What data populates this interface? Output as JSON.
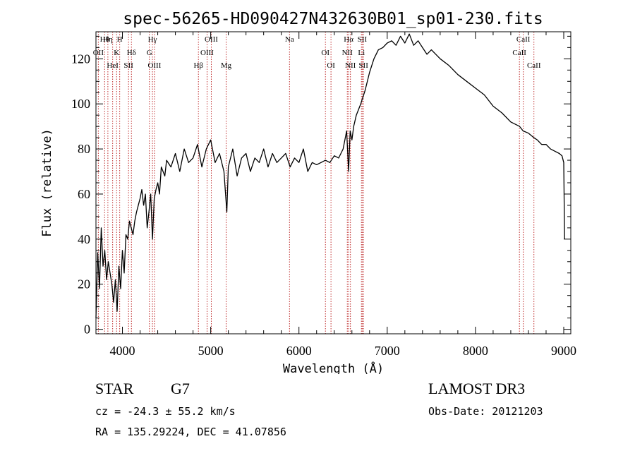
{
  "chart_data": {
    "type": "line",
    "title": "spec-56265-HD090427N432630B01_sp01-230.fits",
    "xlabel": "Wavelength (Å)",
    "ylabel": "Flux (relative)",
    "xlim": [
      3700,
      9080
    ],
    "ylim": [
      -2,
      132
    ],
    "x_ticks": [
      4000,
      5000,
      6000,
      7000,
      8000,
      9000
    ],
    "y_ticks": [
      0,
      20,
      40,
      60,
      80,
      100,
      120
    ],
    "grid": false,
    "series": [
      {
        "name": "flux",
        "x": [
          3700,
          3720,
          3740,
          3760,
          3780,
          3800,
          3820,
          3840,
          3860,
          3880,
          3900,
          3920,
          3940,
          3960,
          3980,
          4000,
          4020,
          4040,
          4060,
          4080,
          4100,
          4120,
          4140,
          4160,
          4180,
          4200,
          4220,
          4240,
          4260,
          4280,
          4300,
          4320,
          4340,
          4360,
          4380,
          4400,
          4420,
          4440,
          4460,
          4480,
          4500,
          4550,
          4600,
          4650,
          4700,
          4750,
          4800,
          4850,
          4900,
          4950,
          5000,
          5050,
          5100,
          5150,
          5183,
          5200,
          5250,
          5300,
          5350,
          5400,
          5450,
          5500,
          5550,
          5600,
          5650,
          5700,
          5750,
          5800,
          5850,
          5900,
          5950,
          6000,
          6050,
          6100,
          6150,
          6200,
          6250,
          6300,
          6350,
          6400,
          6450,
          6500,
          6540,
          6563,
          6580,
          6600,
          6620,
          6650,
          6700,
          6750,
          6800,
          6850,
          6900,
          6950,
          7000,
          7050,
          7100,
          7150,
          7200,
          7250,
          7300,
          7350,
          7400,
          7450,
          7500,
          7600,
          7700,
          7800,
          7900,
          8000,
          8100,
          8200,
          8300,
          8400,
          8500,
          8540,
          8600,
          8662,
          8700,
          8750,
          8800,
          8850,
          8900,
          8950,
          8980,
          9000,
          9010
        ],
        "values": [
          5,
          34,
          18,
          45,
          28,
          35,
          22,
          30,
          25,
          20,
          12,
          22,
          8,
          28,
          18,
          35,
          25,
          42,
          40,
          48,
          45,
          42,
          48,
          52,
          55,
          58,
          62,
          55,
          60,
          45,
          52,
          60,
          40,
          58,
          62,
          65,
          60,
          72,
          70,
          68,
          75,
          72,
          78,
          70,
          80,
          74,
          76,
          82,
          72,
          80,
          84,
          74,
          78,
          70,
          52,
          72,
          80,
          68,
          76,
          78,
          70,
          76,
          74,
          80,
          72,
          78,
          74,
          76,
          78,
          72,
          76,
          74,
          80,
          70,
          74,
          73,
          74,
          75,
          74,
          77,
          76,
          80,
          88,
          70,
          88,
          84,
          90,
          95,
          100,
          106,
          114,
          120,
          124,
          125,
          127,
          128,
          126,
          130,
          127,
          131,
          126,
          128,
          125,
          122,
          124,
          120,
          117,
          113,
          110,
          107,
          104,
          99,
          96,
          92,
          90,
          88,
          87,
          85,
          84,
          82,
          82,
          80,
          79,
          78,
          77,
          74,
          40
        ]
      }
    ],
    "spectral_lines": [
      {
        "label": "Hθ",
        "wavelength": 3798
      },
      {
        "label": "OII",
        "wavelength": 3727
      },
      {
        "label": "HeI",
        "wavelength": 3889
      },
      {
        "label": "Hη",
        "wavelength": 3835
      },
      {
        "label": "K",
        "wavelength": 3934
      },
      {
        "label": "SII",
        "wavelength": 4069
      },
      {
        "label": "H",
        "wavelength": 3969
      },
      {
        "label": "Hδ",
        "wavelength": 4102
      },
      {
        "label": "OIII",
        "wavelength": 4363
      },
      {
        "label": "Hγ",
        "wavelength": 4340
      },
      {
        "label": "G",
        "wavelength": 4305
      },
      {
        "label": "Hβ",
        "wavelength": 4861
      },
      {
        "label": "OIII",
        "wavelength": 5007
      },
      {
        "label": "OIII",
        "wavelength": 4959
      },
      {
        "label": "Mg",
        "wavelength": 5175
      },
      {
        "label": "Na",
        "wavelength": 5893
      },
      {
        "label": "OI",
        "wavelength": 6300
      },
      {
        "label": "OI",
        "wavelength": 6363
      },
      {
        "label": "Hα",
        "wavelength": 6563
      },
      {
        "label": "NII",
        "wavelength": 6548
      },
      {
        "label": "NII",
        "wavelength": 6583
      },
      {
        "label": "SII",
        "wavelength": 6717
      },
      {
        "label": "Li",
        "wavelength": 6708
      },
      {
        "label": "SII",
        "wavelength": 6731
      },
      {
        "label": "CaII",
        "wavelength": 8542
      },
      {
        "label": "CaII",
        "wavelength": 8498
      },
      {
        "label": "CaII",
        "wavelength": 8662
      }
    ]
  },
  "info": {
    "object_class": "STAR",
    "subclass": "G7",
    "survey": "LAMOST DR3",
    "redshift": "cz = -24.3 ± 55.2 km/s",
    "obs_date": "Obs-Date: 20121203",
    "coords": "RA = 135.29224, DEC =  41.07856"
  }
}
